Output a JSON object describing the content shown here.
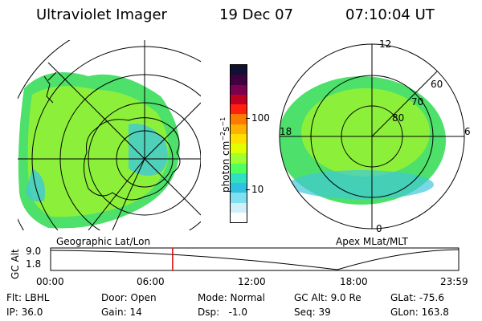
{
  "header": {
    "title": "Ultraviolet Imager",
    "date": "19 Dec 07",
    "time": "07:10:04 UT"
  },
  "colorbar": {
    "unit_label": "photon cm",
    "unit_sup1": "−2",
    "unit_mid": "s",
    "unit_sup2": "−1",
    "tick_100": "100",
    "tick_10": "10",
    "colors": [
      "#101030",
      "#400040",
      "#7a0050",
      "#c00020",
      "#ff2010",
      "#ff7a00",
      "#ffb000",
      "#ffe000",
      "#e0ff00",
      "#a0ff30",
      "#50ff60",
      "#30e0c0",
      "#30c0e0",
      "#80e0f0",
      "#d0f0f8",
      "#ffffff"
    ]
  },
  "left_map": {
    "label": "Geographic Lat/Lon"
  },
  "right_map": {
    "label": "Apex MLat/MLT",
    "mlt": {
      "top": "12",
      "left": "18",
      "right": "6",
      "bottom": "0"
    },
    "lat": {
      "l60": "60",
      "l70": "70",
      "l80": "80"
    }
  },
  "timeline": {
    "ylabel": "GC Alt",
    "y_high": "9.0",
    "y_low": "1.8",
    "ticks": [
      "00:00",
      "06:00",
      "12:00",
      "18:00",
      "23:59"
    ],
    "current_time_hours": 7.17
  },
  "params": {
    "flt": "Flt: LBHL",
    "ip": "IP: 36.0",
    "door": "Door: Open",
    "gain": "Gain: 14",
    "mode": "Mode: Normal",
    "dsp": "Dsp:   -1.0",
    "gcalt": "GC Alt: 9.0 Re",
    "seq": "Seq: 39",
    "glat": "GLat: -75.6",
    "glon": "GLon: 163.8"
  }
}
